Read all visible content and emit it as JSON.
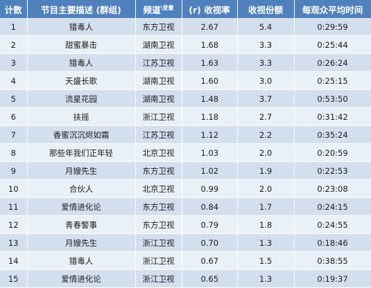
{
  "headers": {
    "rank": "计数",
    "program": "节目主要描述 (群组)",
    "channel": "频道",
    "channel_suffix": "\\变量",
    "rating": "(r) 收视率",
    "share": "收视份额",
    "avg_time": "每观众平均时间"
  },
  "rows": [
    {
      "rank": "1",
      "program": "猎毒人",
      "channel": "东方卫视",
      "rating": "2.67",
      "share": "5.4",
      "avg_time": "0:29:59"
    },
    {
      "rank": "2",
      "program": "甜蜜暴击",
      "channel": "湖南卫视",
      "rating": "1.68",
      "share": "3.3",
      "avg_time": "0:25:44"
    },
    {
      "rank": "3",
      "program": "猎毒人",
      "channel": "江苏卫视",
      "rating": "1.63",
      "share": "3.3",
      "avg_time": "0:26:24"
    },
    {
      "rank": "4",
      "program": "天盛长歌",
      "channel": "湖南卫视",
      "rating": "1.60",
      "share": "3.0",
      "avg_time": "0:25:15"
    },
    {
      "rank": "5",
      "program": "流星花园",
      "channel": "湖南卫视",
      "rating": "1.48",
      "share": "3.7",
      "avg_time": "0:53:50"
    },
    {
      "rank": "6",
      "program": "扶摇",
      "channel": "浙江卫视",
      "rating": "1.18",
      "share": "2.7",
      "avg_time": "0:31:42"
    },
    {
      "rank": "7",
      "program": "香蜜沉沉烬如霜",
      "channel": "江苏卫视",
      "rating": "1.12",
      "share": "2.2",
      "avg_time": "0:35:24"
    },
    {
      "rank": "8",
      "program": "那些年我们正年轻",
      "channel": "北京卫视",
      "rating": "1.03",
      "share": "2.0",
      "avg_time": "0:20:59"
    },
    {
      "rank": "9",
      "program": "月嫂先生",
      "channel": "东方卫视",
      "rating": "1.02",
      "share": "1.9",
      "avg_time": "0:22:53"
    },
    {
      "rank": "10",
      "program": "合伙人",
      "channel": "北京卫视",
      "rating": "0.99",
      "share": "2.0",
      "avg_time": "0:23:08"
    },
    {
      "rank": "11",
      "program": "爱情进化论",
      "channel": "东方卫视",
      "rating": "0.84",
      "share": "1.7",
      "avg_time": "0:24:15"
    },
    {
      "rank": "12",
      "program": "青春警事",
      "channel": "东方卫视",
      "rating": "0.79",
      "share": "1.8",
      "avg_time": "0:24:55"
    },
    {
      "rank": "13",
      "program": "月嫂先生",
      "channel": "浙江卫视",
      "rating": "0.70",
      "share": "1.3",
      "avg_time": "0:18:46"
    },
    {
      "rank": "14",
      "program": "猎毒人",
      "channel": "浙江卫视",
      "rating": "0.67",
      "share": "1.5",
      "avg_time": "0:38:55"
    },
    {
      "rank": "15",
      "program": "爱情进化论",
      "channel": "浙江卫视",
      "rating": "0.65",
      "share": "1.3",
      "avg_time": "0:19:37"
    }
  ],
  "colors": {
    "header_bg": "#4f81bd",
    "row_odd": "#d3dfee",
    "row_even": "#eaf0f7"
  }
}
